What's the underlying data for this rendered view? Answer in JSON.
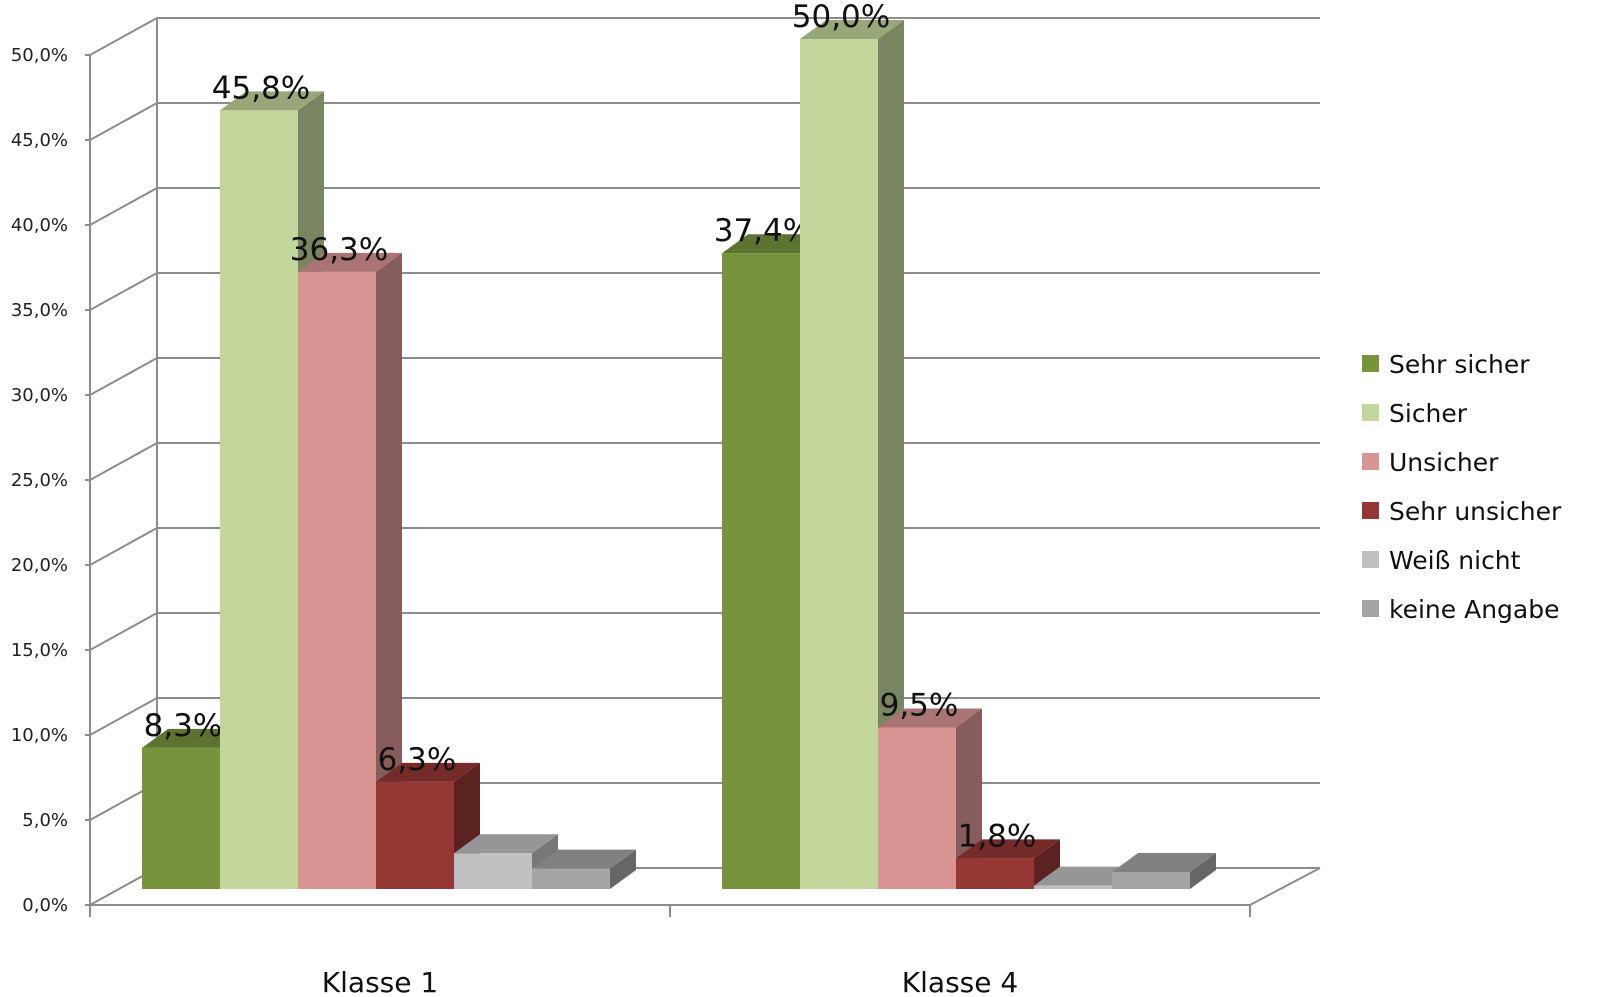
{
  "chart_data": {
    "type": "bar",
    "categories": [
      "Klasse 1",
      "Klasse 4"
    ],
    "series": [
      {
        "name": "Sehr sicher",
        "values": [
          8.3,
          37.4
        ],
        "labels": [
          "8,3%",
          "37,4%"
        ],
        "color": "#77933c",
        "show_label": true
      },
      {
        "name": "Sicher",
        "values": [
          45.8,
          50.0
        ],
        "labels": [
          "45,8%",
          "50,0%"
        ],
        "color": "#c3d69b",
        "show_label": true
      },
      {
        "name": "Unsicher",
        "values": [
          36.3,
          9.5
        ],
        "labels": [
          "36,3%",
          "9,5%"
        ],
        "color": "#d99594",
        "show_label": true
      },
      {
        "name": "Sehr unsicher",
        "values": [
          6.3,
          1.8
        ],
        "labels": [
          "6,3%",
          "1,8%"
        ],
        "color": "#953735",
        "show_label": true
      },
      {
        "name": "Weiß nicht",
        "values": [
          2.1,
          0.2
        ],
        "color": "#c0c0c0",
        "show_label": false
      },
      {
        "name": "keine Angabe",
        "values": [
          1.2,
          1.0
        ],
        "color": "#a5a5a5",
        "show_label": false
      }
    ],
    "y_ticks": [
      "0,0%",
      "5,0%",
      "10,0%",
      "15,0%",
      "20,0%",
      "25,0%",
      "30,0%",
      "35,0%",
      "40,0%",
      "45,0%",
      "50,0%"
    ],
    "ylim": [
      0,
      50
    ],
    "grid": true,
    "legend_position": "right",
    "style": "3d-clustered-column"
  }
}
